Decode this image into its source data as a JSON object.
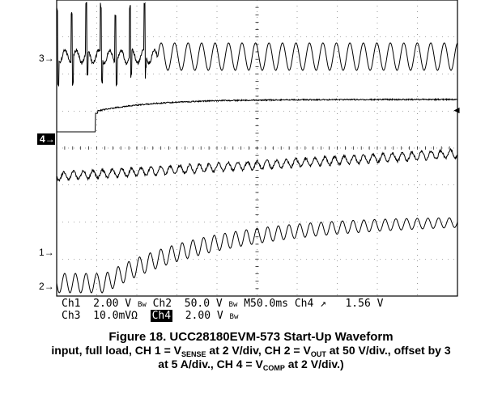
{
  "chart_data": {
    "type": "line",
    "title": "Figure 18. UCC28180EVM-573 Start-Up Waveform",
    "caption": {
      "prefix": "input, full load, CH 1 = V",
      "sub1": "SENSE",
      "mid1": " at 2 V/div, CH 2 = V",
      "sub2": "OUT",
      "mid2": " at 50 V/div., offset by 3",
      "line2_prefix": "at 5 A/div., CH 4 = V",
      "sub3": "COMP",
      "line2_suffix": " at 2 V/div.)"
    },
    "x_unit": "ms",
    "x_range": [
      0,
      500
    ],
    "grid": true,
    "channel_markers": [
      "3",
      "4",
      "1",
      "2"
    ],
    "trigger_marker": "◄",
    "settings": {
      "ch1": "Ch1",
      "ch1_scale": "2.00 V",
      "ch1_bw": "Bw",
      "ch2": "Ch2",
      "ch2_scale": "50.0 V",
      "ch2_bw": "Bw",
      "timebase": "M50.0ms",
      "trig_source": "Ch4",
      "trig_slope": "↗",
      "trig_level": "1.56 V",
      "ch3": "Ch3",
      "ch3_scale": "10.0mVΩ",
      "ch4": "Ch4",
      "ch4_scale": "2.00 V",
      "ch4_bw": "Bw"
    },
    "series": [
      {
        "name": "Ch3",
        "description": "current: bursting spikes until ~50 ms, then steady ~ sinusoid",
        "color": "#000000"
      },
      {
        "name": "Ch4",
        "description": "V_COMP step at ~25 ms then ramps and settles",
        "color": "#000000"
      },
      {
        "name": "Ch1",
        "description": "V_SENSE ripple, rising slowly",
        "color": "#000000"
      },
      {
        "name": "Ch2",
        "description": "V_OUT rising from ~0 and settling",
        "color": "#000000"
      }
    ]
  }
}
